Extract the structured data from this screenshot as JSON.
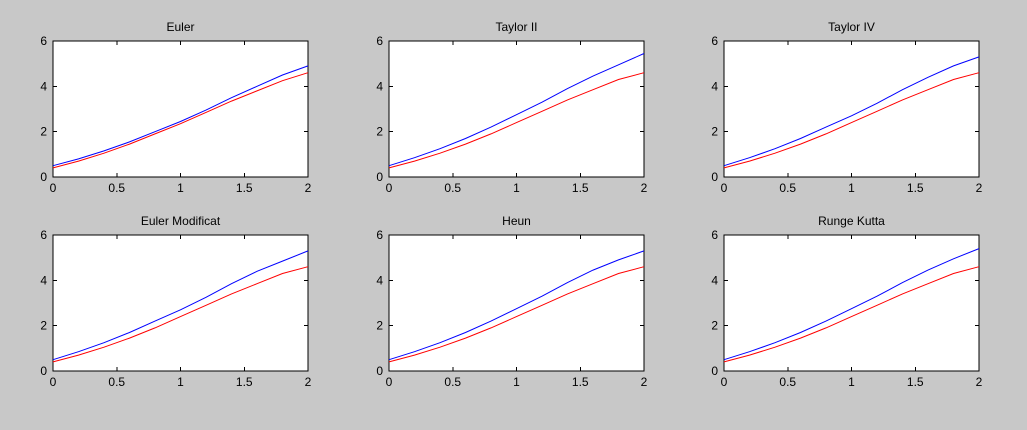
{
  "colors": {
    "figure_background": "#c8c8c8",
    "axes_background": "#ffffff",
    "axes_color": "#000000",
    "series_colors": [
      "#0000ff",
      "#ff0000"
    ]
  },
  "chart_data": [
    {
      "type": "line",
      "title": "Euler",
      "xlabel": "",
      "ylabel": "",
      "xlim": [
        0,
        2
      ],
      "ylim": [
        0,
        6
      ],
      "xticks": [
        "0",
        "0.5",
        "1",
        "1.5",
        "2"
      ],
      "yticks": [
        "0",
        "2",
        "4",
        "6"
      ],
      "grid": false,
      "x": [
        0,
        0.2,
        0.4,
        0.6,
        0.8,
        1.0,
        1.2,
        1.4,
        1.6,
        1.8,
        2.0
      ],
      "series": [
        {
          "values": [
            0.5,
            0.8,
            1.15,
            1.55,
            2.0,
            2.45,
            2.95,
            3.5,
            4.0,
            4.5,
            4.9
          ]
        },
        {
          "values": [
            0.4,
            0.7,
            1.05,
            1.45,
            1.9,
            2.35,
            2.85,
            3.35,
            3.8,
            4.25,
            4.6
          ]
        }
      ]
    },
    {
      "type": "line",
      "title": "Taylor II",
      "xlabel": "",
      "ylabel": "",
      "xlim": [
        0,
        2
      ],
      "ylim": [
        0,
        6
      ],
      "xticks": [
        "0",
        "0.5",
        "1",
        "1.5",
        "2"
      ],
      "yticks": [
        "0",
        "2",
        "4",
        "6"
      ],
      "grid": false,
      "x": [
        0,
        0.2,
        0.4,
        0.6,
        0.8,
        1.0,
        1.2,
        1.4,
        1.6,
        1.8,
        2.0
      ],
      "series": [
        {
          "values": [
            0.5,
            0.85,
            1.25,
            1.7,
            2.2,
            2.75,
            3.3,
            3.9,
            4.45,
            4.95,
            5.45
          ]
        },
        {
          "values": [
            0.4,
            0.7,
            1.05,
            1.45,
            1.9,
            2.4,
            2.9,
            3.4,
            3.85,
            4.3,
            4.6
          ]
        }
      ]
    },
    {
      "type": "line",
      "title": "Taylor IV",
      "xlabel": "",
      "ylabel": "",
      "xlim": [
        0,
        2
      ],
      "ylim": [
        0,
        6
      ],
      "xticks": [
        "0",
        "0.5",
        "1",
        "1.5",
        "2"
      ],
      "yticks": [
        "0",
        "2",
        "4",
        "6"
      ],
      "grid": false,
      "x": [
        0,
        0.2,
        0.4,
        0.6,
        0.8,
        1.0,
        1.2,
        1.4,
        1.6,
        1.8,
        2.0
      ],
      "series": [
        {
          "values": [
            0.5,
            0.85,
            1.25,
            1.7,
            2.2,
            2.7,
            3.25,
            3.85,
            4.4,
            4.9,
            5.3
          ]
        },
        {
          "values": [
            0.4,
            0.7,
            1.05,
            1.45,
            1.9,
            2.4,
            2.9,
            3.4,
            3.85,
            4.3,
            4.6
          ]
        }
      ]
    },
    {
      "type": "line",
      "title": "Euler Modificat",
      "xlabel": "",
      "ylabel": "",
      "xlim": [
        0,
        2
      ],
      "ylim": [
        0,
        6
      ],
      "xticks": [
        "0",
        "0.5",
        "1",
        "1.5",
        "2"
      ],
      "yticks": [
        "0",
        "2",
        "4",
        "6"
      ],
      "grid": false,
      "x": [
        0,
        0.2,
        0.4,
        0.6,
        0.8,
        1.0,
        1.2,
        1.4,
        1.6,
        1.8,
        2.0
      ],
      "series": [
        {
          "values": [
            0.5,
            0.85,
            1.25,
            1.7,
            2.2,
            2.7,
            3.25,
            3.85,
            4.4,
            4.85,
            5.3
          ]
        },
        {
          "values": [
            0.4,
            0.7,
            1.05,
            1.45,
            1.9,
            2.4,
            2.9,
            3.4,
            3.85,
            4.3,
            4.6
          ]
        }
      ]
    },
    {
      "type": "line",
      "title": "Heun",
      "xlabel": "",
      "ylabel": "",
      "xlim": [
        0,
        2
      ],
      "ylim": [
        0,
        6
      ],
      "xticks": [
        "0",
        "0.5",
        "1",
        "1.5",
        "2"
      ],
      "yticks": [
        "0",
        "2",
        "4",
        "6"
      ],
      "grid": false,
      "x": [
        0,
        0.2,
        0.4,
        0.6,
        0.8,
        1.0,
        1.2,
        1.4,
        1.6,
        1.8,
        2.0
      ],
      "series": [
        {
          "values": [
            0.5,
            0.85,
            1.25,
            1.7,
            2.2,
            2.75,
            3.3,
            3.9,
            4.45,
            4.9,
            5.3
          ]
        },
        {
          "values": [
            0.4,
            0.7,
            1.05,
            1.45,
            1.9,
            2.4,
            2.9,
            3.4,
            3.85,
            4.3,
            4.6
          ]
        }
      ]
    },
    {
      "type": "line",
      "title": "Runge Kutta",
      "xlabel": "",
      "ylabel": "",
      "xlim": [
        0,
        2
      ],
      "ylim": [
        0,
        6
      ],
      "xticks": [
        "0",
        "0.5",
        "1",
        "1.5",
        "2"
      ],
      "yticks": [
        "0",
        "2",
        "4",
        "6"
      ],
      "grid": false,
      "x": [
        0,
        0.2,
        0.4,
        0.6,
        0.8,
        1.0,
        1.2,
        1.4,
        1.6,
        1.8,
        2.0
      ],
      "series": [
        {
          "values": [
            0.5,
            0.85,
            1.25,
            1.7,
            2.2,
            2.75,
            3.3,
            3.9,
            4.45,
            4.95,
            5.4
          ]
        },
        {
          "values": [
            0.4,
            0.7,
            1.05,
            1.45,
            1.9,
            2.4,
            2.9,
            3.4,
            3.85,
            4.3,
            4.6
          ]
        }
      ]
    }
  ]
}
